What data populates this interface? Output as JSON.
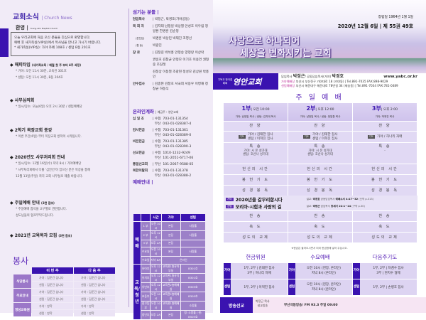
{
  "colors": {
    "primary": "#3a13b0",
    "accent": "#5a25b8",
    "background": "#f1ebf7"
  },
  "news": {
    "title": "교회소식",
    "subtitle": "| Church News",
    "welcome": {
      "title": "환영",
      "subtitle": "Young-Ahn Baptist Church",
      "lines": [
        "오늘 우리교회에 처음 오신 분들을 진심으로 환영합니다.",
        "예배 후 새가족실(VIP실)에서 목사님을 만나고 가시기 바랍니다.",
        "* 새가족실(VIP실): 가야 카페 108호 / 센텀 B동 201호"
      ]
    },
    "items": [
      {
        "title": "해피타임",
        "note": "(새가족교육 / 매월 첫 주 부터 4주 과정)",
        "lines": [
          "* 가야: 오전 11시 30분, 교육관 301호",
          "* 센텀: 오전 11시 30분, B동 204호"
        ]
      },
      {
        "title": "사무심의회",
        "note": "",
        "lines": [
          "* 일시/장소: 오늘(6일) 오후 2시 30분 / 센텀예배당"
        ]
      },
      {
        "title": "2학기 목장교회 종강",
        "note": "",
        "lines": [
          "* 이번 주간(6일) 부터 목장교회 방학이 시작됩니다."
        ]
      },
      {
        "title": "2020년도 사무처리회 안내",
        "note": "",
        "lines": [
          "* 일시/장소: 12월 16일(수) 저녁 8시 / 가야예배당",
          "* 사무처리회에서 다룰 '심안건'이 있으신 분은 목장을 통해",
          "12월 13일(주일) 까지 교회 사무실로 제출 바랍니다."
        ]
      },
      {
        "title": "주일예배 안내",
        "note": "(3면 참조)",
        "lines": [
          "* 주일예배 참석을 교구별로 권면합니다.",
          "성도님들의 협조부탁드립니다."
        ]
      },
      {
        "title": "2021년 교육목자 모집",
        "note": "(3면 참조)",
        "lines": []
      }
    ]
  },
  "service": {
    "title": "봉사",
    "headers": [
      "이 번 주",
      "다 음 주"
    ],
    "groups": [
      {
        "name": "식당봉사",
        "rows": [
          [
            "가야 : 담준간 섬니다",
            "가야 : 담준간 섬니다"
          ],
          [
            "센텀 : 담준간 섬니다",
            "센텀 : 담준간 섬니다"
          ]
        ]
      },
      {
        "name": "주요안내",
        "rows": [
          [
            "가야 : 담준간 섬니다",
            "가야 : 담준간 섬니다"
          ],
          [
            "센텀 : 담준간 섬니다",
            "센텀 : 담준간 섬니다"
          ]
        ]
      },
      {
        "name": "영성교육원",
        "rows": [
          [
            "가야 : 방학",
            "가야 : 방학"
          ],
          [
            "센텀 : 방학",
            "센텀 : 방학"
          ]
        ]
      }
    ]
  },
  "staff": {
    "title": "섬기는 분들 |",
    "rows": [
      {
        "role": "담임목사",
        "names": "| 박정근, 박경호(가야공동)"
      },
      {
        "role": "목 회 자",
        "names": "| 김지태 남정일 박상철 안성호 이우림 정일환 한경훈 김순정"
      },
      {
        "role": "(준전임)",
        "names": "박경훈 박상민 박재진 조영선"
      },
      {
        "role": "(협 동)",
        "names": "박광진"
      },
      {
        "role": "장 로",
        "names": "| 김정길 박석홍 안정승 양정랑 이상락"
      },
      {
        "role": "",
        "names": "권일호 김창균 안정모 이기호 이용언 권형중 조길래"
      },
      {
        "role": "",
        "names": "김정상 이동열 조광현 정성모 김상원 박홍인"
      },
      {
        "role": "안수집사",
        "names": "| 김종현 김창호 서국희 서용우 이병재 정창균 하동식"
      }
    ]
  },
  "accounts": {
    "title": "온라인계좌",
    "holder": "| 예금주 : 영안교회",
    "rows": [
      {
        "name": "십 일 조",
        "lines": [
          "| 수협  703-01-131354",
          "  부산  043-01-028387-4"
        ]
      },
      {
        "name": "감사헌금",
        "lines": [
          "| 수협  703-01-131361",
          "  부산  043-01-028389-0"
        ]
      },
      {
        "name": "비전헌금",
        "lines": [
          "| 수협  703-01-131385",
          "  부산  043-01-028390-3"
        ]
      },
      {
        "name": "선교헌금",
        "lines": [
          "| 수협  1010-1232-9249",
          "  부산  101-2051-6717-06"
        ]
      },
      {
        "name": "통일선교회",
        "lines": [
          "| 부산  101-2067-9588-05"
        ]
      },
      {
        "name": "북한이탈회",
        "lines": [
          "| 수협  703-01-131378",
          "  부산  043-01-028388-2"
        ]
      }
    ]
  },
  "schedule": {
    "title": "예배안내 |",
    "headers": [
      "",
      "",
      "시간",
      "가야",
      "센텀"
    ],
    "worship_label": "예배",
    "edu_label": "교육/청년",
    "worship": [
      [
        "1 부",
        "오전 10시",
        "본당",
        "사랑홀"
      ],
      [
        "2 부",
        "오후 12시",
        "본당",
        "사랑홀"
      ],
      [
        "3 부",
        "오후 2시",
        "본당",
        ""
      ],
      [
        "수요일",
        "오전 10시",
        "본당",
        "사랑홀"
      ],
      [
        "수요일",
        "저녁 8시",
        "온라인",
        null
      ]
    ],
    "edu": [
      [
        "유아부",
        "오후 12시",
        "교육관1층유아부실",
        "B301호"
      ],
      [
        "유치부",
        "오후 12시",
        "교육관1층유치부실",
        "B301호"
      ],
      [
        "유년부",
        "오후 12시",
        "교육관2층예배실",
        "B305호"
      ],
      [
        "초등부",
        "오전 10시",
        "교육관2층예배실",
        "B305호"
      ],
      [
        "중고등부",
        "오전 10시",
        "교육관1층예배실",
        "소망홀"
      ],
      [
        "청년부",
        "오후 2시",
        "본당",
        "청: 소망홀 / 센: B505호"
      ]
    ]
  },
  "header": {
    "founded": "창립일 1964년  1월  1일",
    "issue": "2020년  12월  6일 | 제 55권 49호",
    "slogan": [
      "사랑으로 하나되어",
      "세상을 변화시키는 교회"
    ],
    "logo_small": "기독교 한국침례회",
    "logo": "영안교회",
    "pastor_label": "담임목사",
    "pastor": "박정근",
    "copastor_label": "/ 공동담임목사(가야)",
    "copastor": "박경호",
    "website": "www.yabc.or.kr",
    "locations": [
      {
        "name": "가야예배당",
        "address": "부산시 부산진구 가야대로 18 (가야동)",
        "tel": "| Tel.891-7035 FAX:898-9029"
      },
      {
        "name": "센텀예배당",
        "address": "부산시 해운대구 해운대로 78번길 34 (재송동)",
        "tel": "| Tel.891-7034 FAX:781-0489"
      }
    ]
  },
  "worship": {
    "title": "주 일 예 배",
    "services": [
      {
        "num": "1부",
        "time": "| 오전 10:00",
        "preachers": "가야: 남정일 목사 / 센텀: 김지태 목사",
        "prayer": [
          "가야 / 김태한 집사",
          "센텀 / 이혁진 집사"
        ],
        "special": [
          "가야: 시 온 성가대",
          "센텀: 호산나 성가대"
        ]
      },
      {
        "num": "2부",
        "time": "| 오후 12:00",
        "preachers": "가야: 남정일 목사 / 센텀: 정일환 목사",
        "prayer": [
          "가야 / 김태한 집사",
          "센텀 / 이혁진 집사"
        ],
        "special": [
          "가야: 시 온 성가대",
          "센텀: 호산나 성가대"
        ]
      },
      {
        "num": "3부",
        "time": "| 오후 2:00",
        "preachers": "가야: 박재진 목사",
        "prayer": [
          "가야 / 허나리 자매"
        ],
        "special": [
          "-"
        ]
      }
    ],
    "labels": {
      "hymn1": "찬  양",
      "prayer_tag": "기도",
      "special": "특  송",
      "devotion": "헌신의 시간",
      "offering_prayer": "봉 헌 기 도",
      "reading": "성 경 봉 독",
      "hymn2": "찬  송",
      "benediction": "축  도",
      "fellowship": "성도의 교제"
    },
    "sermons": [
      {
        "tag": "가야",
        "title": "2020년을 갈무리합시다",
        "info_pre": "설교: ",
        "preacher": "박경호",
        "role": " 공동담임목사 ",
        "text": "에베소서 4:17~32",
        "page": " (신약 p.313)"
      },
      {
        "tag": "센텀",
        "title": "모리아-시험과 사랑의 길",
        "info_pre": "설교: ",
        "preacher": "박정근",
        "role": " 담임목사 ",
        "text": "창세기 22:1~14",
        "page": " (구약 p.30)"
      }
    ],
    "note": "※헌금은 들어오시면서 미리 헌금함에 넣어 주십시오."
  },
  "offering": [
    {
      "title": "헌금위원",
      "rows": [
        {
          "tag": "가야",
          "lines": [
            "1부, 2부 | 김태한 집사",
            "3부 | 허나리 자매"
          ]
        },
        {
          "tag": "센텀",
          "lines": [
            "1부, 2부 | 이혁진 집사"
          ]
        }
      ]
    },
    {
      "title": "수요예배",
      "rows": [
        {
          "tag": "가야",
          "lines": [
            "오전 10시 (현장, 온라인)",
            "저녁 8시 (온라인)"
          ]
        },
        {
          "tag": "센텀",
          "lines": [
            "오전 10시 (현장, 온라인)",
            "저녁 8시 (온라인)"
          ]
        }
      ]
    },
    {
      "title": "다음주기도",
      "rows": [
        {
          "tag": "가야",
          "lines": [
            "1부, 2부 | 차겸수 집사",
            "3부 | 현지수 형제"
          ]
        },
        {
          "tag": "센텀",
          "lines": [
            "1부, 2부 | 손병호 집사"
          ]
        }
      ]
    }
  ],
  "broadcast": {
    "label": "방송선교",
    "who": [
      "박정근 목사",
      "설교방송"
    ],
    "info": "부산극동방송/ FM 93.3 주일 09:00"
  }
}
